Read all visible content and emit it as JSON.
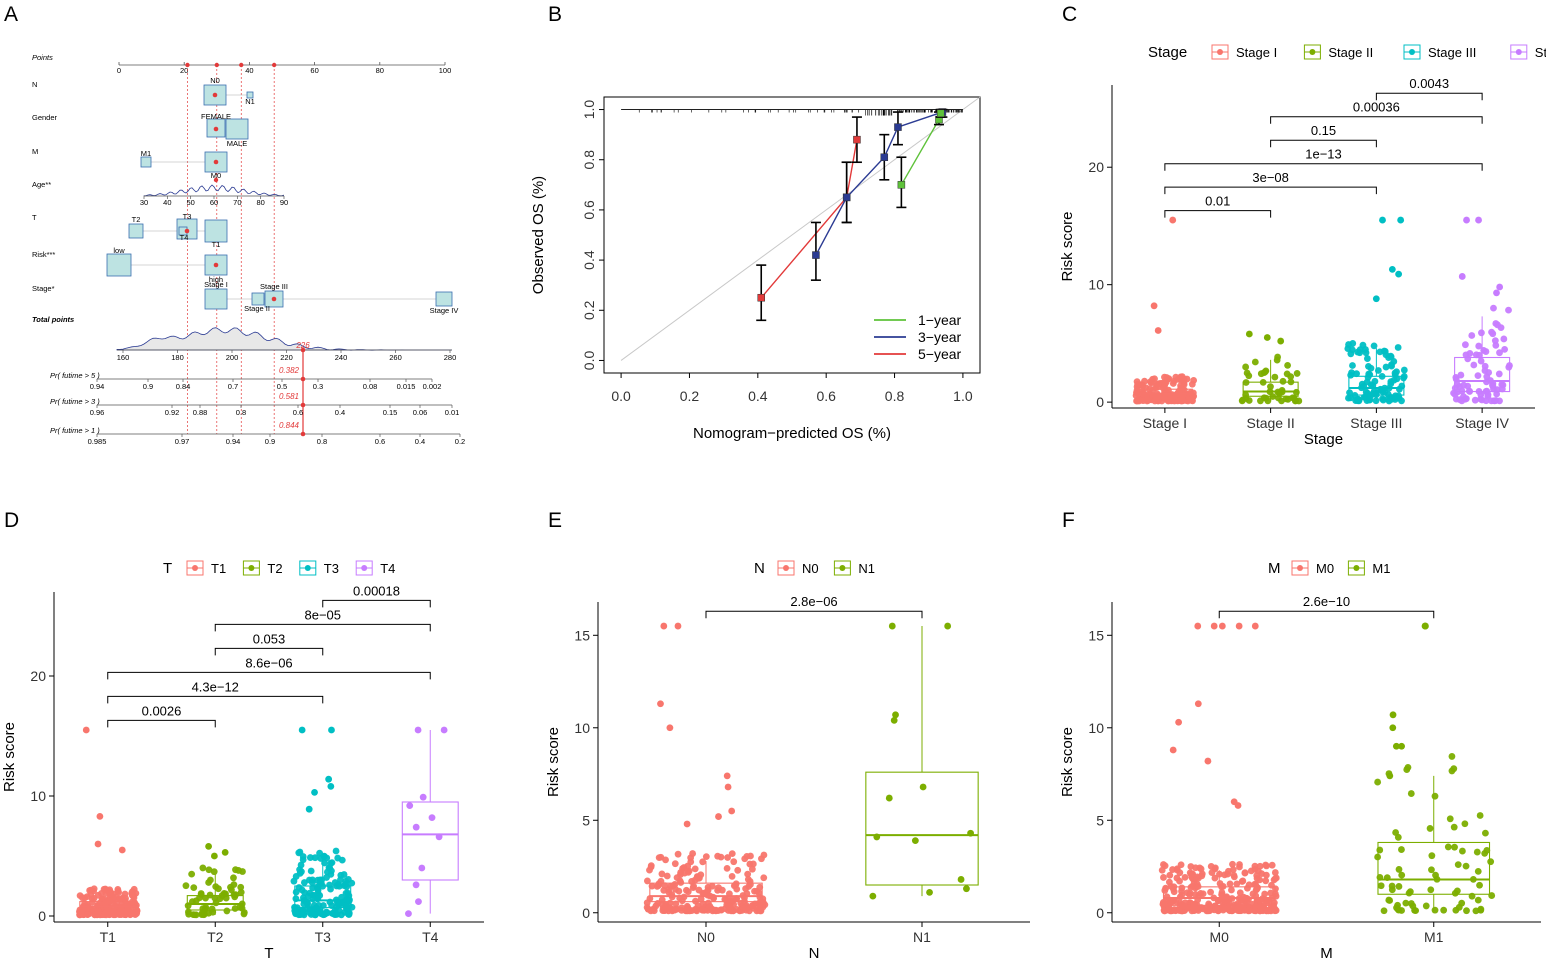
{
  "panels": [
    "A",
    "B",
    "C",
    "D",
    "E",
    "F"
  ],
  "colors": {
    "c1": "#F8766D",
    "c2": "#7CAE00",
    "c3": "#00BFC4",
    "c4": "#C77CFF",
    "red": "#e23a3a",
    "blue": "#2b3b93",
    "green": "#5ec23a"
  },
  "chart_data": [
    {
      "panel": "A",
      "type": "nomogram",
      "points_axis": {
        "label": "Points",
        "ticks": [
          "0",
          "20",
          "40",
          "60",
          "80",
          "100"
        ]
      },
      "variables": [
        {
          "name": "N",
          "levels": [
            "N0",
            "N1"
          ]
        },
        {
          "name": "Gender",
          "levels": [
            "FEMALE",
            "MALE"
          ]
        },
        {
          "name": "M",
          "levels": [
            "M1",
            "M0"
          ]
        },
        {
          "name": "Age**",
          "ticks": [
            "30",
            "40",
            "50",
            "60",
            "70",
            "80",
            "90"
          ]
        },
        {
          "name": "T",
          "levels": [
            "T2",
            "T3",
            "T4",
            "T1"
          ]
        },
        {
          "name": "Risk***",
          "levels": [
            "low",
            "high"
          ]
        },
        {
          "name": "Stage*",
          "levels": [
            "Stage I",
            "Stage III",
            "Stage II",
            "Stage IV"
          ]
        }
      ],
      "total_points": {
        "label": "Total points",
        "ticks": [
          "160",
          "180",
          "200",
          "220",
          "240",
          "260",
          "280"
        ],
        "value": "226"
      },
      "prob_axes": [
        {
          "label": "Pr( futime > 5 )",
          "ticks": [
            "0.94",
            "0.9",
            "0.84",
            "0.7",
            "0.5",
            "0.3",
            "0.08",
            "0.015",
            "0.002"
          ],
          "value": "0.382"
        },
        {
          "label": "Pr( futime > 3 )",
          "ticks": [
            "0.96",
            "0.92",
            "0.88",
            "0.8",
            "0.6",
            "0.4",
            "0.15",
            "0.06",
            "0.01"
          ],
          "value": "0.581"
        },
        {
          "label": "Pr( futime > 1 )",
          "ticks": [
            "0.985",
            "0.97",
            "0.94",
            "0.9",
            "0.8",
            "0.6",
            "0.4",
            "0.2"
          ],
          "value": "0.844"
        }
      ]
    },
    {
      "panel": "B",
      "type": "line",
      "title": "",
      "xlabel": "Nomogram−predicted OS (%)",
      "ylabel": "Observed OS (%)",
      "xlim": [
        -0.05,
        1.05
      ],
      "ylim": [
        -0.05,
        1.05
      ],
      "xticks": [
        "0.0",
        "0.2",
        "0.4",
        "0.6",
        "0.8",
        "1.0"
      ],
      "yticks": [
        "0.0",
        "0.2",
        "0.4",
        "0.6",
        "0.8",
        "1.0"
      ],
      "series": [
        {
          "name": "1−year",
          "color": "#5ec23a",
          "x": [
            0.82,
            0.93,
            0.935
          ],
          "y": [
            0.7,
            0.96,
            0.985
          ],
          "lo": [
            0.61,
            0.94,
            0.97
          ],
          "hi": [
            0.81,
            0.99,
            1.0
          ]
        },
        {
          "name": "3−year",
          "color": "#2b3b93",
          "x": [
            0.57,
            0.66,
            0.77,
            0.81,
            0.94
          ],
          "y": [
            0.42,
            0.65,
            0.81,
            0.93,
            0.99
          ],
          "lo": [
            0.32,
            0.55,
            0.72,
            0.86,
            0.97
          ],
          "hi": [
            0.55,
            0.79,
            0.9,
            0.99,
            1.0
          ]
        },
        {
          "name": "5−year",
          "color": "#e23a3a",
          "x": [
            0.41,
            0.66,
            0.69
          ],
          "y": [
            0.25,
            0.65,
            0.88
          ],
          "lo": [
            0.16,
            0.55,
            0.79
          ],
          "hi": [
            0.38,
            0.79,
            0.97
          ]
        }
      ]
    },
    {
      "panel": "C",
      "type": "box",
      "legend_title": "Stage",
      "categories": [
        "Stage I",
        "Stage II",
        "Stage III",
        "Stage IV"
      ],
      "xlabel": "Stage",
      "ylabel": "Risk score",
      "ylim": [
        -0.5,
        27
      ],
      "yticks": [
        0,
        10,
        20
      ],
      "boxes": [
        {
          "q1": 0.4,
          "median": 0.7,
          "q3": 1.1,
          "lo": 0.1,
          "hi": 1.9
        },
        {
          "q1": 0.5,
          "median": 0.9,
          "q3": 1.7,
          "lo": 0.1,
          "hi": 3.6
        },
        {
          "q1": 0.6,
          "median": 1.2,
          "q3": 2.2,
          "lo": 0.1,
          "hi": 4.6
        },
        {
          "q1": 0.9,
          "median": 1.8,
          "q3": 3.8,
          "lo": 0.1,
          "hi": 7.3
        }
      ],
      "n_points": [
        150,
        45,
        100,
        80
      ],
      "outliers": [
        [
          15.5,
          8.2,
          6.1
        ],
        [
          5.8,
          5.5,
          5.2
        ],
        [
          15.5,
          15.5,
          11.3,
          10.9,
          8.8
        ],
        [
          15.5,
          15.5,
          10.7,
          9.8,
          9.3
        ]
      ],
      "comparisons": [
        {
          "a": 1,
          "b": 2,
          "y": 16.3,
          "label": "0.01"
        },
        {
          "a": 1,
          "b": 3,
          "y": 18.3,
          "label": "3e−08"
        },
        {
          "a": 1,
          "b": 4,
          "y": 20.3,
          "label": "1e−13"
        },
        {
          "a": 2,
          "b": 3,
          "y": 22.3,
          "label": "0.15"
        },
        {
          "a": 2,
          "b": 4,
          "y": 24.3,
          "label": "0.00036"
        },
        {
          "a": 3,
          "b": 4,
          "y": 26.3,
          "label": "0.0043"
        }
      ]
    },
    {
      "panel": "D",
      "type": "box",
      "legend_title": "T",
      "categories": [
        "T1",
        "T2",
        "T3",
        "T4"
      ],
      "xlabel": "T",
      "ylabel": "Risk score",
      "ylim": [
        -0.5,
        27
      ],
      "yticks": [
        0,
        10,
        20
      ],
      "boxes": [
        {
          "q1": 0.5,
          "median": 0.8,
          "q3": 1.2,
          "lo": 0.1,
          "hi": 2.0
        },
        {
          "q1": 0.5,
          "median": 1.0,
          "q3": 1.7,
          "lo": 0.1,
          "hi": 3.5
        },
        {
          "q1": 0.7,
          "median": 1.3,
          "q3": 2.5,
          "lo": 0.1,
          "hi": 4.8
        },
        {
          "q1": 3.0,
          "median": 6.8,
          "q3": 9.5,
          "lo": 0.2,
          "hi": 15.5
        }
      ],
      "n_points": [
        180,
        60,
        160,
        0
      ],
      "outliers": [
        [
          15.5,
          8.3,
          6.0,
          5.5
        ],
        [
          5.8,
          5.3,
          5.0
        ],
        [
          15.5,
          15.5,
          11.4,
          10.8,
          10.3,
          8.9
        ],
        [
          15.5,
          15.5,
          9.9,
          9.2,
          8.2,
          7.4,
          6.6,
          4.0,
          2.6,
          1.2,
          0.2
        ]
      ],
      "comparisons": [
        {
          "a": 1,
          "b": 2,
          "y": 16.3,
          "label": "0.0026"
        },
        {
          "a": 1,
          "b": 3,
          "y": 18.3,
          "label": "4.3e−12"
        },
        {
          "a": 1,
          "b": 4,
          "y": 20.3,
          "label": "8.6e−06"
        },
        {
          "a": 2,
          "b": 3,
          "y": 22.3,
          "label": "0.053"
        },
        {
          "a": 2,
          "b": 4,
          "y": 24.3,
          "label": "8e−05"
        },
        {
          "a": 3,
          "b": 4,
          "y": 26.3,
          "label": "0.00018"
        }
      ]
    },
    {
      "panel": "E",
      "type": "box",
      "legend_title": "N",
      "categories": [
        "N0",
        "N1"
      ],
      "xlabel": "N",
      "ylabel": "Risk score",
      "ylim": [
        -0.5,
        16.8
      ],
      "yticks": [
        0,
        5,
        10,
        15
      ],
      "boxes": [
        {
          "q1": 0.6,
          "median": 0.9,
          "q3": 1.6,
          "lo": 0.1,
          "hi": 2.8
        },
        {
          "q1": 1.5,
          "median": 4.2,
          "q3": 7.6,
          "lo": 0.9,
          "hi": 15.5
        }
      ],
      "n_points": [
        230,
        0
      ],
      "outliers": [
        [
          15.5,
          15.5,
          11.3,
          10.0,
          7.4,
          6.8,
          5.5,
          5.2,
          4.8
        ],
        [
          15.5,
          15.5,
          10.7,
          10.4,
          6.8,
          6.2,
          4.3,
          4.1,
          3.9,
          1.8,
          1.3,
          1.1,
          0.9
        ]
      ],
      "comparisons": [
        {
          "a": 1,
          "b": 2,
          "y": 16.3,
          "label": "2.8e−06"
        }
      ]
    },
    {
      "panel": "F",
      "type": "box",
      "legend_title": "M",
      "categories": [
        "M0",
        "M1"
      ],
      "xlabel": "M",
      "ylabel": "Risk score",
      "ylim": [
        -0.5,
        16.8
      ],
      "yticks": [
        0,
        5,
        10,
        15
      ],
      "boxes": [
        {
          "q1": 0.4,
          "median": 0.8,
          "q3": 1.4,
          "lo": 0.1,
          "hi": 2.3
        },
        {
          "q1": 1.0,
          "median": 1.8,
          "q3": 3.8,
          "lo": 0.1,
          "hi": 7.4
        }
      ],
      "n_points": [
        300,
        75
      ],
      "outliers": [
        [
          15.5,
          15.5,
          15.5,
          15.5,
          15.5,
          11.3,
          10.3,
          8.8,
          8.2,
          6.0,
          5.8
        ],
        [
          15.5,
          15.5,
          10.7,
          10.0,
          9.0,
          9.0,
          7.4
        ]
      ],
      "comparisons": [
        {
          "a": 1,
          "b": 2,
          "y": 16.3,
          "label": "2.6e−10"
        }
      ]
    }
  ]
}
